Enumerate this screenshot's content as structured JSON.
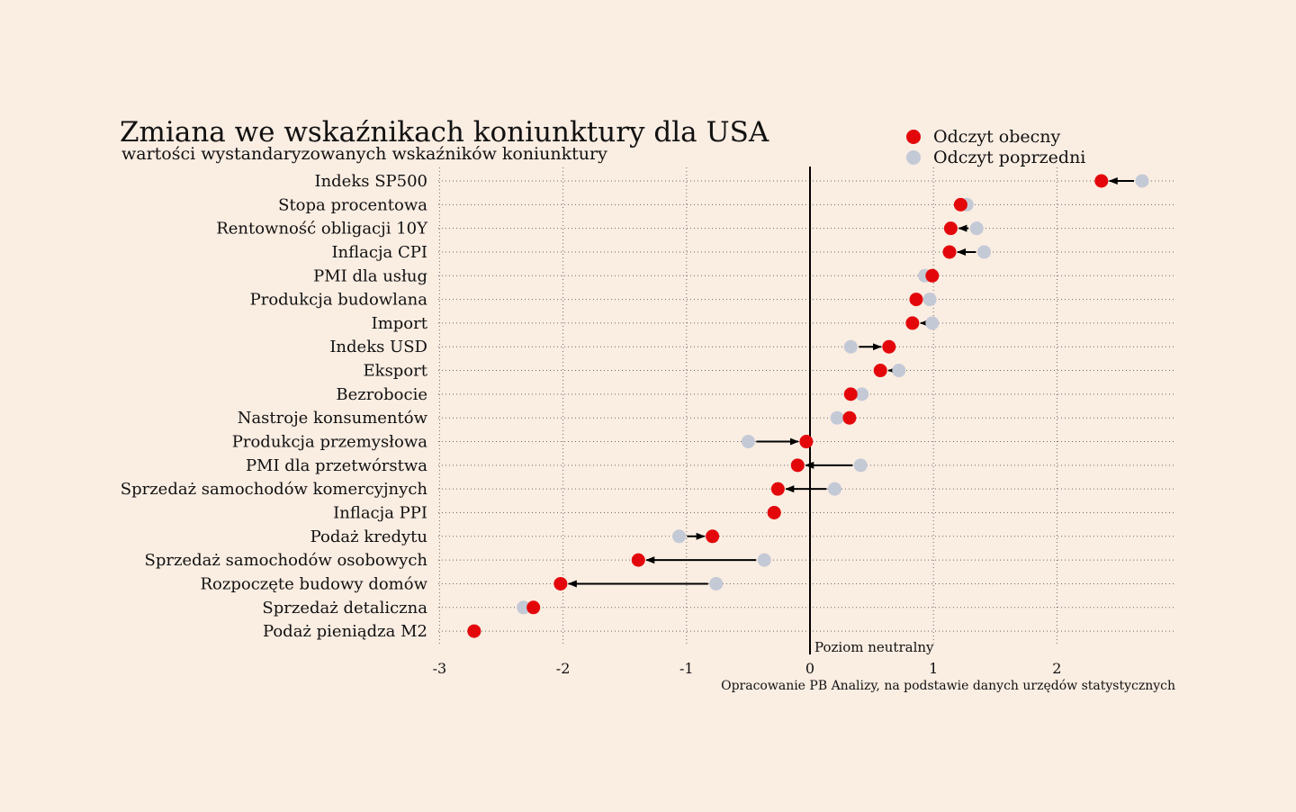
{
  "chart_data": {
    "type": "dumbbell",
    "title": "Zmiana we wskaźnikach koniunktury dla USA",
    "subtitle": "wartości wystandaryzowanych wskaźników koniunktury",
    "xlim": [
      -3,
      3
    ],
    "xticks": [
      -3,
      -2,
      -1,
      0,
      1,
      2
    ],
    "neutral_label": "Poziom neutralny",
    "source": "Opracowanie PB Analizy, na podstawie danych urzędów statystycznych",
    "legend_position": "top-right",
    "grid": "dotted horizontal per row",
    "series": [
      {
        "key": "current",
        "name": "Odczyt obecny",
        "color": "#e3070b"
      },
      {
        "key": "previous",
        "name": "Odczyt poprzedni",
        "color": "#c4c9d6"
      }
    ],
    "categories": [
      "Indeks SP500",
      "Stopa procentowa",
      "Rentowność obligacji 10Y",
      "Inflacja CPI",
      "PMI dla usług",
      "Produkcja budowlana",
      "Import",
      "Indeks USD",
      "Eksport",
      "Bezrobocie",
      "Nastroje konsumentów",
      "Produkcja przemysłowa",
      "PMI dla przetwórstwa",
      "Sprzedaż samochodów komercyjnych",
      "Inflacja PPI",
      "Podaż kredytu",
      "Sprzedaż samochodów osobowych",
      "Rozpoczęte budowy domów",
      "Sprzedaż detaliczna",
      "Podaż pieniądza M2"
    ],
    "current": [
      2.36,
      1.22,
      1.14,
      1.13,
      0.99,
      0.86,
      0.83,
      0.64,
      0.57,
      0.33,
      0.32,
      -0.03,
      -0.1,
      -0.26,
      -0.29,
      -0.79,
      -1.39,
      -2.02,
      -2.24,
      -2.72
    ],
    "previous": [
      2.69,
      1.27,
      1.35,
      1.41,
      0.93,
      0.97,
      0.99,
      0.33,
      0.72,
      0.42,
      0.22,
      -0.5,
      0.41,
      0.2,
      -0.29,
      -1.06,
      -0.37,
      -0.76,
      -2.32,
      -2.72
    ]
  }
}
